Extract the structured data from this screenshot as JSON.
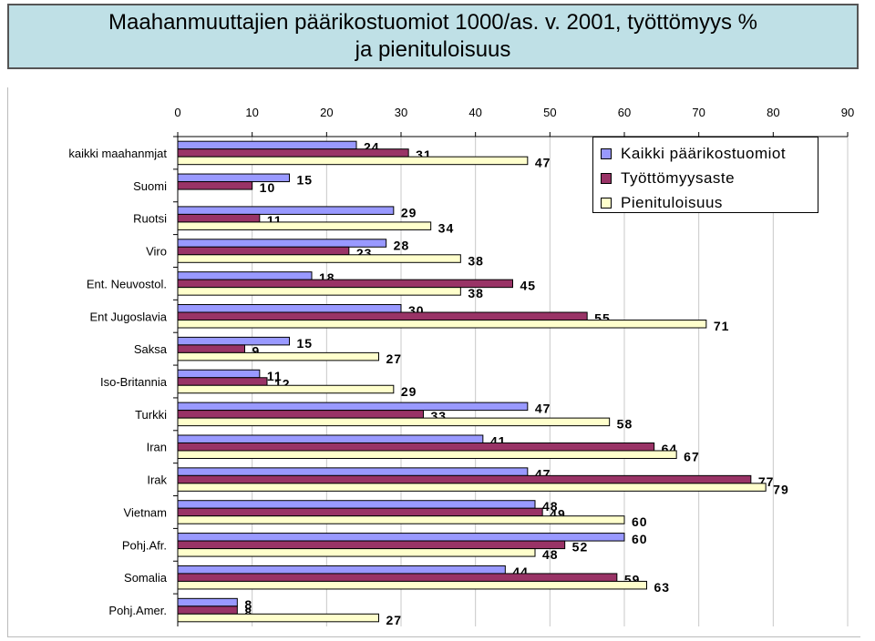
{
  "title": "Maahanmuuttajien päärikostuomiot 1000/as. v. 2001, työttömyys %\nja pienituloisuus",
  "chart_data": {
    "type": "bar",
    "orientation": "horizontal",
    "categories": [
      "kaikki maahanmjat",
      "Suomi",
      "Ruotsi",
      "Viro",
      "Ent. Neuvostol.",
      "Ent Jugoslavia",
      "Saksa",
      "Iso-Britannia",
      "Turkki",
      "Iran",
      "Irak",
      "Vietnam",
      "Pohj.Afr.",
      "Somalia",
      "Pohj.Amer."
    ],
    "series": [
      {
        "name": "Kaikki päärikostuomiot",
        "color": "#9999ff",
        "values": [
          24,
          15,
          29,
          28,
          18,
          30,
          15,
          11,
          47,
          41,
          47,
          48,
          60,
          44,
          8
        ]
      },
      {
        "name": "Työttömyysaste",
        "color": "#993366",
        "values": [
          31,
          10,
          11,
          23,
          45,
          55,
          9,
          12,
          33,
          64,
          77,
          49,
          52,
          59,
          8
        ]
      },
      {
        "name": "Pienituloisuus",
        "color": "#ffffcc",
        "values": [
          47,
          null,
          34,
          38,
          38,
          71,
          27,
          29,
          58,
          67,
          79,
          60,
          48,
          63,
          27
        ]
      }
    ],
    "data_labels": {
      "kaikki maahanmjat": [
        "24",
        "31",
        "47"
      ],
      "Suomi": [
        "15",
        "10",
        ""
      ],
      "Ruotsi": [
        "29",
        "11",
        "34"
      ],
      "Viro": [
        "28",
        "23",
        "38"
      ],
      "Ent. Neuvostol.": [
        "18",
        "45",
        "38"
      ],
      "Ent Jugoslavia": [
        "30",
        "55",
        "71"
      ],
      "Saksa": [
        "15",
        "9",
        "27"
      ],
      "Iso-Britannia": [
        "11",
        "12",
        "29"
      ],
      "Turkki": [
        "47",
        "33",
        "58"
      ],
      "Iran": [
        "41",
        "64",
        "67"
      ],
      "Irak": [
        "47",
        "77",
        "79"
      ],
      "Vietnam": [
        "48",
        "49",
        "60"
      ],
      "Pohj.Afr.": [
        "60",
        "52",
        "48"
      ],
      "Somalia": [
        "44",
        "59",
        "63"
      ],
      "Pohj.Amer.": [
        "8",
        "8",
        "27"
      ]
    },
    "xticks": [
      "0",
      "10",
      "20",
      "30",
      "40",
      "50",
      "60",
      "70",
      "80",
      "90"
    ],
    "xlim": [
      0,
      90
    ],
    "xaxis_position": "top",
    "grid": true,
    "legend_position": "top-right"
  }
}
